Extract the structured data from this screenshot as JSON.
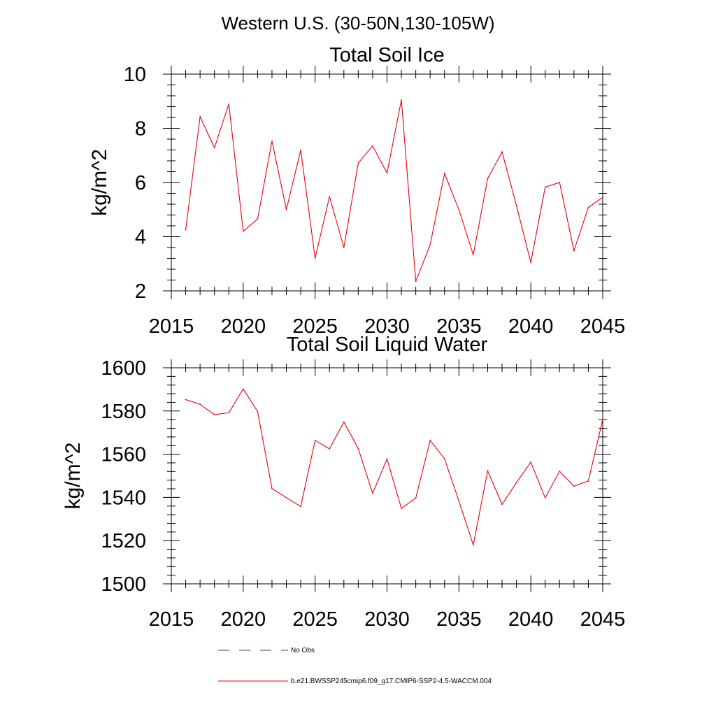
{
  "suptitle": "Western U.S. (30-50N,130-105W)",
  "colors": {
    "series": "#e8000b",
    "obs": "#3b3b8f",
    "axis": "#000000"
  },
  "legend": {
    "obs_label": "No Obs",
    "model_label": "b.e21.BWSSP245cmip6.f09_g17.CMIP6-SSP2-4.5-WACCM.004"
  },
  "chart_data": [
    {
      "type": "line",
      "title": "Total Soil Ice",
      "xlabel": "",
      "ylabel": "kg/m^2",
      "xlim": [
        2015,
        2045
      ],
      "ylim": [
        2,
        10
      ],
      "xticks": [
        2015,
        2020,
        2025,
        2030,
        2035,
        2040,
        2045
      ],
      "yticks": [
        2,
        4,
        6,
        8,
        10
      ],
      "grid": false,
      "series": [
        {
          "name": "b.e21.BWSSP245cmip6.f09_g17.CMIP6-SSP2-4.5-WACCM.004",
          "x": [
            2016,
            2017,
            2018,
            2019,
            2020,
            2021,
            2022,
            2023,
            2024,
            2025,
            2026,
            2027,
            2028,
            2029,
            2030,
            2031,
            2032,
            2033,
            2034,
            2035,
            2036,
            2037,
            2038,
            2039,
            2040,
            2041,
            2042,
            2043,
            2044,
            2045
          ],
          "values": [
            4.25,
            8.43,
            7.28,
            8.9,
            4.2,
            4.65,
            7.53,
            5.0,
            7.2,
            3.2,
            5.48,
            3.6,
            6.72,
            7.35,
            6.35,
            9.05,
            2.35,
            3.7,
            6.33,
            5.0,
            3.33,
            6.15,
            7.13,
            5.15,
            3.05,
            5.83,
            6.0,
            3.48,
            5.08,
            5.45
          ]
        }
      ]
    },
    {
      "type": "line",
      "title": "Total Soil Liquid Water",
      "xlabel": "",
      "ylabel": "kg/m^2",
      "xlim": [
        2015,
        2045
      ],
      "ylim": [
        1500,
        1600
      ],
      "xticks": [
        2015,
        2020,
        2025,
        2030,
        2035,
        2040,
        2045
      ],
      "yticks": [
        1500,
        1520,
        1540,
        1560,
        1580,
        1600
      ],
      "grid": false,
      "series": [
        {
          "name": "b.e21.BWSSP245cmip6.f09_g17.CMIP6-SSP2-4.5-WACCM.004",
          "x": [
            2016,
            2017,
            2018,
            2019,
            2020,
            2021,
            2022,
            2023,
            2024,
            2025,
            2026,
            2027,
            2028,
            2029,
            2030,
            2031,
            2032,
            2033,
            2034,
            2035,
            2036,
            2037,
            2038,
            2039,
            2040,
            2041,
            2042,
            2043,
            2044,
            2045
          ],
          "values": [
            1585.3,
            1583.1,
            1578.3,
            1579.2,
            1590.2,
            1579.8,
            1544.1,
            1539.9,
            1535.8,
            1566.4,
            1562.5,
            1574.9,
            1562.6,
            1541.9,
            1557.8,
            1534.9,
            1539.8,
            1566.4,
            1557.9,
            1538.3,
            1518.0,
            1552.3,
            1536.8,
            1546.9,
            1556.3,
            1539.8,
            1552.1,
            1545.2,
            1547.6,
            1576.1
          ]
        }
      ]
    }
  ]
}
